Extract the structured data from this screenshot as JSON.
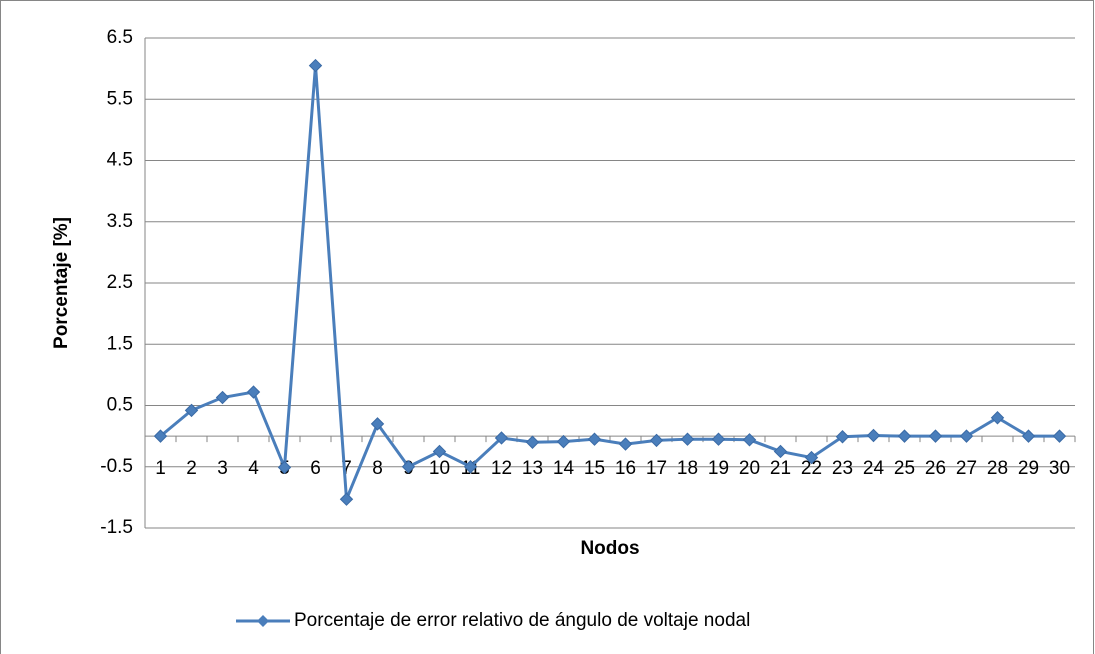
{
  "chart_data": {
    "type": "line",
    "xlabel": "Nodos",
    "ylabel": "Porcentaje [%]",
    "categories": [
      "1",
      "2",
      "3",
      "4",
      "5",
      "6",
      "7",
      "8",
      "9",
      "10",
      "11",
      "12",
      "13",
      "14",
      "15",
      "16",
      "17",
      "18",
      "19",
      "20",
      "21",
      "22",
      "23",
      "24",
      "25",
      "26",
      "27",
      "28",
      "29",
      "30"
    ],
    "series": [
      {
        "name": "Porcentaje de error relativo de ángulo de voltaje nodal",
        "color": "#4a7ebb",
        "values": [
          0.0,
          0.42,
          0.63,
          0.72,
          -0.51,
          6.05,
          -1.03,
          0.2,
          -0.5,
          -0.25,
          -0.5,
          -0.03,
          -0.1,
          -0.09,
          -0.05,
          -0.13,
          -0.07,
          -0.05,
          -0.05,
          -0.06,
          -0.25,
          -0.35,
          -0.01,
          0.01,
          0.0,
          0.0,
          0.0,
          0.3,
          0.0,
          0.0
        ]
      }
    ],
    "ylim": [
      -1.5,
      6.5
    ],
    "yticks": [
      -1.5,
      -0.5,
      0.5,
      1.5,
      2.5,
      3.5,
      4.5,
      5.5,
      6.5
    ],
    "grid": true,
    "legend": "bottom"
  }
}
